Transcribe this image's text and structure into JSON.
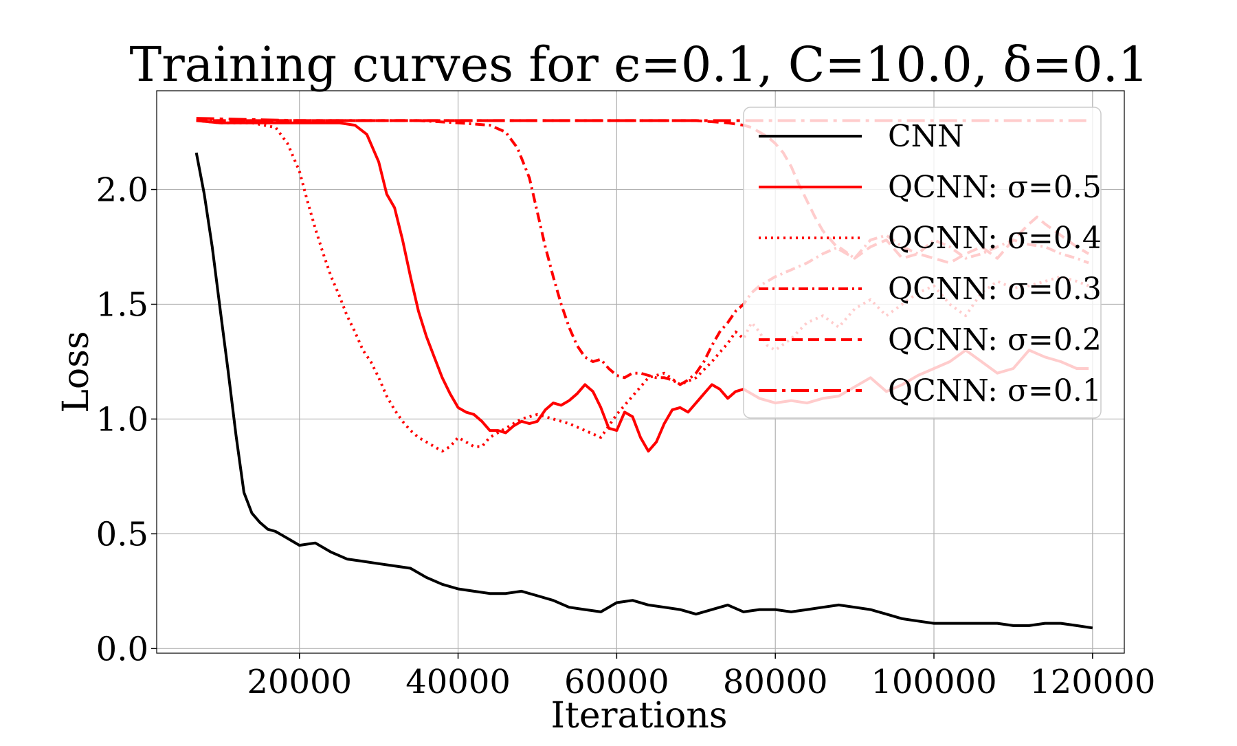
{
  "chart_data": {
    "type": "line",
    "title": "Training curves for ϵ=0.1, C=10.0, δ=0.1",
    "xlabel": "Iterations",
    "ylabel": "Loss",
    "xlim": [
      2000,
      124000
    ],
    "ylim": [
      -0.02,
      2.43
    ],
    "xticks": [
      20000,
      40000,
      60000,
      80000,
      100000,
      120000
    ],
    "yticks": [
      0.0,
      0.5,
      1.0,
      1.5,
      2.0
    ],
    "xtick_labels": [
      "20000",
      "40000",
      "60000",
      "80000",
      "100000",
      "120000"
    ],
    "ytick_labels": [
      "0.0",
      "0.5",
      "1.0",
      "1.5",
      "2.0"
    ],
    "grid": true,
    "legend_position": "upper-right",
    "series": [
      {
        "name": "CNN",
        "color": "#000000",
        "style": "solid",
        "x": [
          7000,
          8000,
          9000,
          10000,
          11000,
          12000,
          13000,
          14000,
          15000,
          16000,
          17000,
          18000,
          19000,
          20000,
          22000,
          24000,
          26000,
          28000,
          30000,
          32000,
          34000,
          36000,
          38000,
          40000,
          42000,
          44000,
          46000,
          48000,
          50000,
          52000,
          54000,
          56000,
          58000,
          60000,
          62000,
          64000,
          66000,
          68000,
          70000,
          72000,
          74000,
          76000,
          78000,
          80000,
          82000,
          84000,
          86000,
          88000,
          90000,
          92000,
          94000,
          96000,
          98000,
          100000,
          102000,
          104000,
          106000,
          108000,
          110000,
          112000,
          114000,
          116000,
          118000,
          120000
        ],
        "y": [
          2.16,
          1.98,
          1.75,
          1.48,
          1.21,
          0.93,
          0.68,
          0.59,
          0.55,
          0.52,
          0.51,
          0.49,
          0.47,
          0.45,
          0.46,
          0.42,
          0.39,
          0.38,
          0.37,
          0.36,
          0.35,
          0.31,
          0.28,
          0.26,
          0.25,
          0.24,
          0.24,
          0.25,
          0.23,
          0.21,
          0.18,
          0.17,
          0.16,
          0.2,
          0.21,
          0.19,
          0.18,
          0.17,
          0.15,
          0.17,
          0.19,
          0.16,
          0.17,
          0.17,
          0.16,
          0.17,
          0.18,
          0.19,
          0.18,
          0.17,
          0.15,
          0.13,
          0.12,
          0.11,
          0.11,
          0.11,
          0.11,
          0.11,
          0.1,
          0.1,
          0.11,
          0.11,
          0.1,
          0.09
        ]
      },
      {
        "name": "QCNN: σ=0.5",
        "color": "#ff0000",
        "style": "solid",
        "x": [
          7000,
          10000,
          14000,
          18000,
          22000,
          25000,
          27000,
          28500,
          30000,
          31000,
          32000,
          33000,
          34000,
          35000,
          36000,
          37000,
          38000,
          39000,
          40000,
          41000,
          42000,
          43000,
          44000,
          45000,
          46000,
          47000,
          48000,
          49000,
          50000,
          51000,
          52000,
          53000,
          54000,
          55000,
          56000,
          57000,
          58000,
          59000,
          60000,
          61000,
          62000,
          63000,
          64000,
          65000,
          66000,
          67000,
          68000,
          69000,
          70000,
          71000,
          72000,
          73000,
          74000,
          75000,
          76000,
          77000,
          78000,
          79000,
          80000,
          82000,
          84000,
          86000,
          88000,
          90000,
          92000,
          94000,
          96000,
          98000,
          100000,
          102000,
          104000,
          106000,
          108000,
          110000,
          112000,
          114000,
          116000,
          118000,
          119500
        ],
        "y": [
          2.3,
          2.29,
          2.29,
          2.29,
          2.29,
          2.29,
          2.28,
          2.24,
          2.12,
          1.98,
          1.92,
          1.78,
          1.62,
          1.47,
          1.36,
          1.27,
          1.18,
          1.11,
          1.05,
          1.03,
          1.02,
          0.99,
          0.95,
          0.95,
          0.94,
          0.97,
          0.99,
          0.98,
          0.99,
          1.04,
          1.07,
          1.06,
          1.08,
          1.11,
          1.15,
          1.12,
          1.05,
          0.96,
          0.95,
          1.03,
          1.01,
          0.92,
          0.86,
          0.9,
          0.98,
          1.04,
          1.05,
          1.03,
          1.07,
          1.11,
          1.15,
          1.13,
          1.09,
          1.12,
          1.13,
          1.11,
          1.09,
          1.08,
          1.07,
          1.08,
          1.07,
          1.09,
          1.1,
          1.14,
          1.18,
          1.12,
          1.15,
          1.19,
          1.22,
          1.25,
          1.3,
          1.25,
          1.2,
          1.22,
          1.3,
          1.27,
          1.25,
          1.22,
          1.22
        ]
      },
      {
        "name": "QCNN: σ=0.4",
        "color": "#ff0000",
        "style": "dotted",
        "x": [
          7000,
          10000,
          14000,
          17000,
          18500,
          20000,
          21000,
          22000,
          23000,
          24000,
          25000,
          26000,
          27000,
          28000,
          29000,
          30000,
          31000,
          32000,
          33000,
          34000,
          35000,
          36000,
          37000,
          38000,
          39000,
          40000,
          41000,
          42000,
          43000,
          44000,
          45000,
          46000,
          47000,
          48000,
          50000,
          52000,
          54000,
          56000,
          58000,
          60000,
          62000,
          64000,
          66000,
          68000,
          70000,
          72000,
          74000,
          75000,
          76000,
          77000,
          78000,
          79000,
          80000,
          82000,
          84000,
          86000,
          88000,
          90000,
          92000,
          94000,
          96000,
          98000,
          100000,
          102000,
          104000,
          106000,
          108000,
          110000,
          112000,
          114000,
          116000,
          118000,
          119500
        ],
        "y": [
          2.3,
          2.29,
          2.29,
          2.27,
          2.2,
          2.08,
          1.95,
          1.83,
          1.72,
          1.62,
          1.54,
          1.45,
          1.38,
          1.3,
          1.25,
          1.18,
          1.1,
          1.04,
          0.99,
          0.95,
          0.92,
          0.9,
          0.88,
          0.86,
          0.88,
          0.92,
          0.9,
          0.88,
          0.88,
          0.92,
          0.94,
          0.96,
          0.98,
          1.0,
          1.02,
          1.0,
          0.98,
          0.95,
          0.92,
          1.02,
          1.1,
          1.18,
          1.2,
          1.15,
          1.18,
          1.25,
          1.33,
          1.38,
          1.35,
          1.42,
          1.38,
          1.32,
          1.3,
          1.35,
          1.42,
          1.45,
          1.4,
          1.48,
          1.52,
          1.45,
          1.5,
          1.55,
          1.58,
          1.5,
          1.45,
          1.55,
          1.6,
          1.57,
          1.58,
          1.6,
          1.62,
          1.6,
          1.58
        ]
      },
      {
        "name": "QCNN: σ=0.3",
        "color": "#ff0000",
        "style": "dashdot",
        "x": [
          7000,
          15000,
          25000,
          35000,
          40000,
          44000,
          46000,
          47500,
          49000,
          50000,
          51000,
          52000,
          53000,
          54000,
          55000,
          56000,
          57000,
          58000,
          59000,
          60000,
          61000,
          62000,
          63000,
          64000,
          65000,
          66000,
          67000,
          68000,
          69000,
          70000,
          71000,
          72000,
          73000,
          74000,
          75000,
          76000,
          77000,
          78000,
          79000,
          80000,
          82000,
          84000,
          86000,
          88000,
          90000,
          92000,
          94000,
          96000,
          98000,
          100000,
          102000,
          104000,
          106000,
          108000,
          110000,
          112000,
          114000,
          116000,
          118000,
          119500
        ],
        "y": [
          2.3,
          2.3,
          2.3,
          2.3,
          2.29,
          2.28,
          2.25,
          2.18,
          2.05,
          1.9,
          1.75,
          1.62,
          1.5,
          1.4,
          1.32,
          1.27,
          1.25,
          1.26,
          1.22,
          1.19,
          1.18,
          1.2,
          1.2,
          1.19,
          1.18,
          1.18,
          1.17,
          1.15,
          1.17,
          1.2,
          1.25,
          1.32,
          1.38,
          1.42,
          1.47,
          1.5,
          1.55,
          1.58,
          1.6,
          1.62,
          1.65,
          1.68,
          1.72,
          1.75,
          1.7,
          1.78,
          1.8,
          1.75,
          1.72,
          1.78,
          1.75,
          1.7,
          1.72,
          1.75,
          1.78,
          1.76,
          1.75,
          1.72,
          1.7,
          1.68
        ]
      },
      {
        "name": "QCNN: σ=0.2",
        "color": "#ff0000",
        "style": "dashed",
        "x": [
          7000,
          20000,
          40000,
          60000,
          66000,
          70000,
          74000,
          76000,
          77000,
          78000,
          79000,
          80000,
          81000,
          82000,
          83000,
          84000,
          85000,
          86000,
          87000,
          88000,
          89000,
          90000,
          92000,
          94000,
          96000,
          98000,
          100000,
          102000,
          104000,
          106000,
          108000,
          110000,
          112000,
          113000,
          114000,
          116000,
          118000,
          119500
        ],
        "y": [
          2.3,
          2.3,
          2.3,
          2.3,
          2.3,
          2.3,
          2.29,
          2.28,
          2.27,
          2.25,
          2.23,
          2.2,
          2.16,
          2.1,
          2.02,
          1.95,
          1.88,
          1.82,
          1.78,
          1.74,
          1.72,
          1.7,
          1.75,
          1.78,
          1.7,
          1.72,
          1.7,
          1.68,
          1.72,
          1.75,
          1.7,
          1.78,
          1.85,
          1.88,
          1.85,
          1.8,
          1.75,
          1.72
        ]
      },
      {
        "name": "QCNN: σ=0.1",
        "color": "#ff0000",
        "style": "longdashdot",
        "x": [
          7000,
          20000,
          40000,
          60000,
          80000,
          100000,
          119500
        ],
        "y": [
          2.31,
          2.3,
          2.3,
          2.3,
          2.3,
          2.3,
          2.3
        ]
      }
    ]
  }
}
